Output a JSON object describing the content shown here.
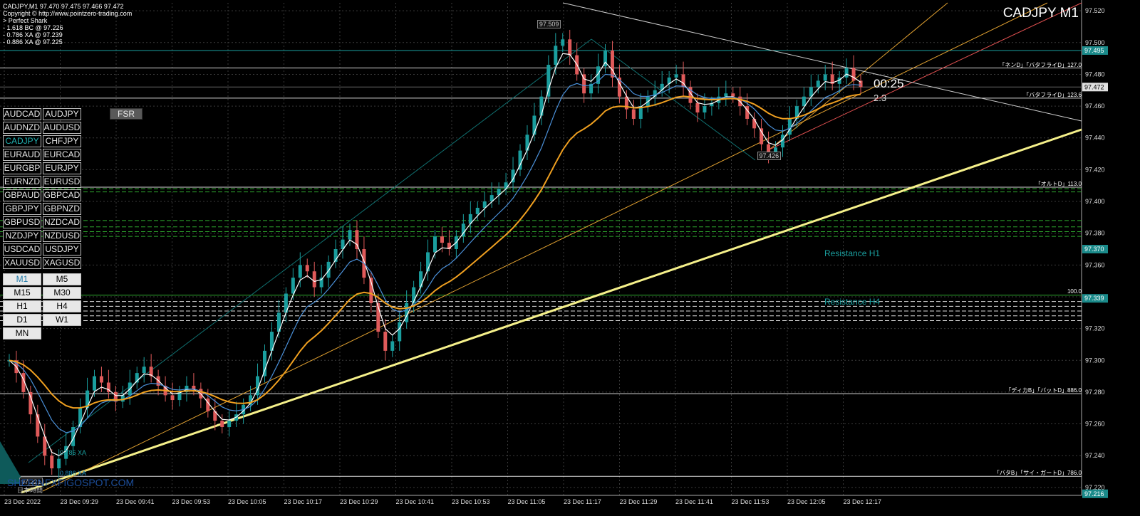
{
  "header": {
    "symbol_line": "CADJPY,M1  97.470 97.475 97.466 97.472",
    "copyright": "Copyright © http://www.pointzero-trading.com",
    "pattern_lines": [
      "> Perfect Shark",
      "- 1.618 BC @ 97.226",
      "- 0.786 XA @ 97.239",
      "- 0.886 XA @ 97.225"
    ]
  },
  "chart_title": "CADJPY M1",
  "pairs": [
    "AUDCAD",
    "AUDJPY",
    "AUDNZD",
    "AUDUSD",
    "CADJPY",
    "CHFJPY",
    "EURAUD",
    "EURCAD",
    "EURGBP",
    "EURJPY",
    "EURNZD",
    "EURUSD",
    "GBPAUD",
    "GBPCAD",
    "GBPJPY",
    "GBPNZD",
    "GBPUSD",
    "NZDCAD",
    "NZDJPY",
    "NZDUSD",
    "USDCAD",
    "USDJPY",
    "XAUUSD",
    "XAGUSD"
  ],
  "active_pair": "CADJPY",
  "timeframes": [
    "M1",
    "M5",
    "M15",
    "M30",
    "H1",
    "H4",
    "D1",
    "W1",
    "MN"
  ],
  "active_timeframe": "M1",
  "fsr_label": "FSR",
  "countdown": "00:25",
  "spread": "2.3",
  "watermark": "SHERINFXFIGOSPOT.COM",
  "jp_time_label": "日本時間",
  "labels": {
    "resistance_h1": "Resistance H1",
    "resistance_h4": "Resistance H4",
    "fib_100": "100.0",
    "xa_786": "0.786 XA",
    "xa_886": "0.886 XA"
  },
  "level_tags": [
    {
      "text": "「ネンD」「バタフライD」127.0",
      "price": 97.484
    },
    {
      "text": "「バタフライD」123.6",
      "price": 97.465
    },
    {
      "text": "「オルトD」113.0",
      "price": 97.409
    },
    {
      "text": "「ディカB」「バットD」886.0",
      "price": 97.279
    },
    {
      "text": "「バタB」「サイ・ガートD」786.0",
      "price": 97.227
    }
  ],
  "price_boxes": [
    {
      "text": "97.509",
      "price": 97.509,
      "time_index": 76
    },
    {
      "text": "97.426",
      "price": 97.426,
      "time_index": 107
    },
    {
      "text": "97.221",
      "price": 97.221,
      "time_index": 3
    }
  ],
  "chart_data": {
    "type": "candlestick",
    "symbol": "CADJPY",
    "timeframe": "M1",
    "ylim": [
      97.215,
      97.525
    ],
    "y_ticks": [
      "97.520",
      "97.500",
      "97.480",
      "97.460",
      "97.440",
      "97.420",
      "97.400",
      "97.380",
      "97.360",
      "97.340",
      "97.320",
      "97.300",
      "97.280",
      "97.260",
      "97.240",
      "97.220"
    ],
    "x_ticks": [
      "23 Dec 2022",
      "23 Dec 09:29",
      "23 Dec 09:41",
      "23 Dec 09:53",
      "23 Dec 10:05",
      "23 Dec 10:17",
      "23 Dec 10:29",
      "23 Dec 10:41",
      "23 Dec 10:53",
      "23 Dec 11:05",
      "23 Dec 11:17",
      "23 Dec 11:29",
      "23 Dec 11:41",
      "23 Dec 11:53",
      "23 Dec 12:05",
      "23 Dec 12:17"
    ],
    "grid": true,
    "current_price": "97.472",
    "current_price_value": 97.472,
    "highlighted_prices": [
      {
        "text": "97.495",
        "price": 97.495
      },
      {
        "text": "97.370",
        "price": 97.37
      },
      {
        "text": "97.339",
        "price": 97.339
      },
      {
        "text": "97.216",
        "price": 97.216
      }
    ],
    "closes": [
      97.3,
      97.292,
      97.28,
      97.266,
      97.252,
      97.24,
      97.232,
      97.238,
      97.246,
      97.258,
      97.27,
      97.281,
      97.29,
      97.286,
      97.28,
      97.274,
      97.278,
      97.286,
      97.292,
      97.296,
      97.29,
      97.284,
      97.278,
      97.275,
      97.28,
      97.284,
      97.282,
      97.276,
      97.268,
      97.262,
      97.258,
      97.262,
      97.266,
      97.272,
      97.278,
      97.29,
      97.306,
      97.318,
      97.33,
      97.342,
      97.352,
      97.36,
      97.356,
      97.346,
      97.352,
      97.362,
      97.37,
      97.376,
      97.382,
      97.37,
      97.352,
      97.336,
      97.318,
      97.306,
      97.312,
      97.324,
      97.336,
      97.346,
      97.356,
      97.368,
      97.378,
      97.374,
      97.37,
      97.378,
      97.386,
      97.392,
      97.396,
      97.4,
      97.404,
      97.408,
      97.412,
      97.42,
      97.432,
      97.442,
      97.454,
      97.466,
      97.486,
      97.498,
      97.502,
      97.492,
      97.48,
      97.468,
      97.474,
      97.485,
      97.495,
      97.478,
      97.466,
      97.458,
      97.452,
      97.46,
      97.466,
      97.47,
      97.474,
      97.478,
      97.48,
      97.472,
      97.462,
      97.456,
      97.46,
      97.462,
      97.466,
      97.468,
      97.466,
      97.46,
      97.452,
      97.446,
      97.436,
      97.43,
      97.434,
      97.442,
      97.452,
      97.46,
      97.466,
      97.472,
      97.476,
      97.48,
      97.474,
      97.478,
      97.484,
      97.476,
      97.472
    ],
    "indicator_lines": [
      {
        "name": "fast",
        "color": "#ffffff"
      },
      {
        "name": "mid",
        "color": "#4a90d9"
      },
      {
        "name": "slow",
        "color": "#f0a020"
      }
    ]
  },
  "colors": {
    "bull": "#1a9e9e",
    "bear": "#e05a5a",
    "grid": "#3a3a3a",
    "trend_yellow": "#f5f08a",
    "trend_orange": "#e0a030",
    "trend_red": "#e05050",
    "trend_white": "#cccccc",
    "resistance_green": "#2ea82e",
    "current_price_bg": "#e0e0e0",
    "label_cyan": "#1aa0a0"
  }
}
